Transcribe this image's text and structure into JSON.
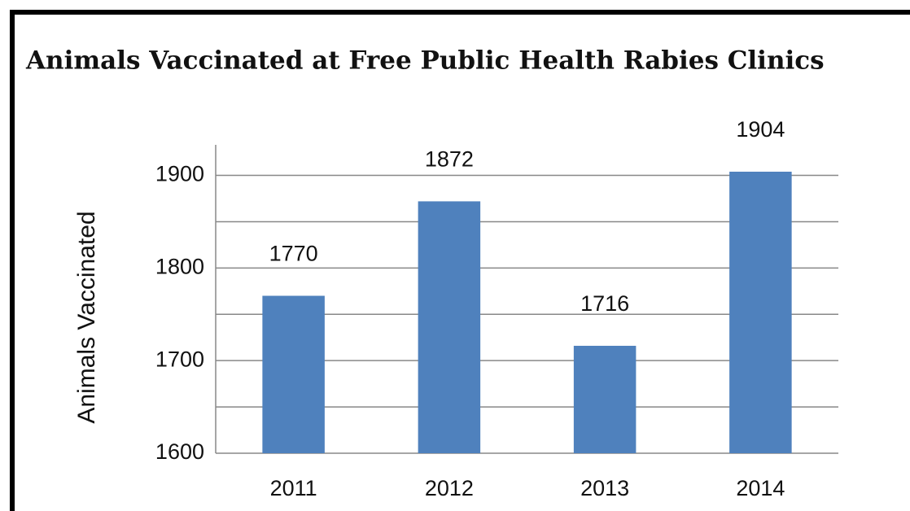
{
  "chart_data": {
    "type": "bar",
    "title": "Animals Vaccinated at Free Public Health Rabies Clinics",
    "ylabel": "Animals Vaccinated",
    "categories": [
      "2011",
      "2012",
      "2013",
      "2014"
    ],
    "values": [
      1770,
      1872,
      1716,
      1904
    ],
    "color": "#4f81bd",
    "ylim": [
      1600,
      1933
    ],
    "yticks": [
      1600,
      1700,
      1800,
      1900
    ],
    "minor_yticks": [
      1650,
      1750,
      1850
    ],
    "grid": true
  }
}
